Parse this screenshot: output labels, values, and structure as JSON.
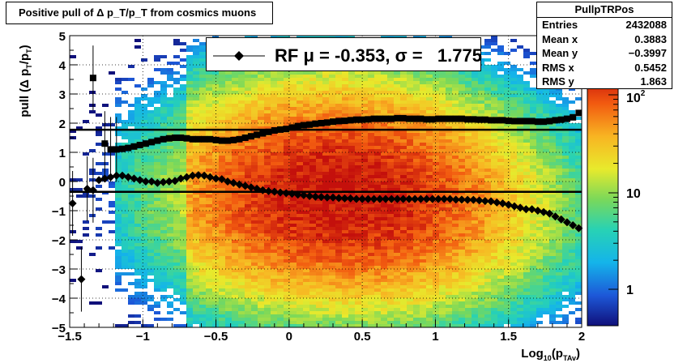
{
  "title": "Positive pull of Δ p_T/p_T from cosmics muons",
  "stats": {
    "name": "PullpTRPos",
    "rows": [
      {
        "label": "Entries",
        "value": "2432088"
      },
      {
        "label": "Mean x",
        "value": "0.3883"
      },
      {
        "label": "Mean y",
        "value": "−0.3997"
      },
      {
        "label": "RMS x",
        "value": "0.5452"
      },
      {
        "label": "RMS y",
        "value": "1.863"
      }
    ]
  },
  "legend": {
    "text": "RF μ = -0.353, σ =   1.775"
  },
  "chart_data": {
    "type": "heatmap",
    "title": "Positive pull of Δ p_T/p_T from cosmics muons",
    "xlabel": "Log10(pTAv)",
    "ylabel": "pull (Δ pT/pT)",
    "xlim": [
      -1.5,
      2
    ],
    "ylim": [
      -5,
      5
    ],
    "x_ticks": [
      "−1.5",
      "−1",
      "−0.5",
      "0",
      "0.5",
      "1",
      "1.5",
      "2"
    ],
    "y_ticks": [
      "−5",
      "−4",
      "−3",
      "−2",
      "−1",
      "0",
      "1",
      "2",
      "3",
      "4",
      "5"
    ],
    "z_scale": "log",
    "z_ticks": [
      "1",
      "10",
      "10^2"
    ],
    "grid": true,
    "reference_lines": [
      {
        "name": "mean",
        "y": -0.353
      },
      {
        "name": "sigma",
        "y": 1.775
      }
    ],
    "series": [
      {
        "name": "mean",
        "marker": "diamond",
        "x": [
          -1.48,
          -1.42,
          -1.38,
          -1.34,
          -1.3,
          -1.26,
          -1.22,
          -1.18,
          -1.14,
          -1.1,
          -1.06,
          -1.02,
          -0.98,
          -0.94,
          -0.9,
          -0.86,
          -0.82,
          -0.78,
          -0.74,
          -0.7,
          -0.66,
          -0.62,
          -0.58,
          -0.54,
          -0.5,
          -0.46,
          -0.42,
          -0.38,
          -0.34,
          -0.3,
          -0.26,
          -0.22,
          -0.18,
          -0.14,
          -0.1,
          -0.06,
          -0.02,
          0.02,
          0.06,
          0.1,
          0.14,
          0.18,
          0.22,
          0.26,
          0.3,
          0.34,
          0.38,
          0.42,
          0.46,
          0.5,
          0.54,
          0.58,
          0.62,
          0.66,
          0.7,
          0.74,
          0.78,
          0.82,
          0.86,
          0.9,
          0.94,
          0.98,
          1.02,
          1.06,
          1.1,
          1.14,
          1.18,
          1.22,
          1.26,
          1.3,
          1.34,
          1.38,
          1.42,
          1.46,
          1.5,
          1.54,
          1.58,
          1.62,
          1.66,
          1.7,
          1.74,
          1.78,
          1.82,
          1.86,
          1.9,
          1.94,
          1.98
        ],
        "y": [
          -0.75,
          -3.35,
          -0.25,
          -0.3,
          0.05,
          0.1,
          0.15,
          0.2,
          0.2,
          0.15,
          0.1,
          0.05,
          0.0,
          0.0,
          -0.05,
          -0.02,
          0.0,
          0.02,
          0.1,
          0.15,
          0.2,
          0.22,
          0.2,
          0.15,
          0.1,
          0.08,
          0.0,
          -0.05,
          -0.1,
          -0.15,
          -0.2,
          -0.25,
          -0.3,
          -0.33,
          -0.35,
          -0.38,
          -0.4,
          -0.42,
          -0.45,
          -0.47,
          -0.5,
          -0.52,
          -0.53,
          -0.55,
          -0.55,
          -0.57,
          -0.58,
          -0.58,
          -0.6,
          -0.6,
          -0.6,
          -0.6,
          -0.6,
          -0.6,
          -0.6,
          -0.6,
          -0.6,
          -0.6,
          -0.6,
          -0.6,
          -0.6,
          -0.6,
          -0.6,
          -0.6,
          -0.6,
          -0.62,
          -0.62,
          -0.63,
          -0.63,
          -0.65,
          -0.67,
          -0.68,
          -0.72,
          -0.75,
          -0.8,
          -0.85,
          -0.9,
          -0.95,
          -0.95,
          -1.0,
          -1.05,
          -1.1,
          -1.2,
          -1.3,
          -1.4,
          -1.5,
          -1.6
        ]
      },
      {
        "name": "sigma",
        "marker": "square",
        "x": [
          -1.34,
          -1.26,
          -1.22,
          -1.18,
          -1.14,
          -1.1,
          -1.06,
          -1.02,
          -0.98,
          -0.94,
          -0.9,
          -0.86,
          -0.82,
          -0.78,
          -0.74,
          -0.7,
          -0.66,
          -0.62,
          -0.58,
          -0.54,
          -0.5,
          -0.46,
          -0.42,
          -0.38,
          -0.34,
          -0.3,
          -0.26,
          -0.22,
          -0.18,
          -0.14,
          -0.1,
          -0.06,
          -0.02,
          0.02,
          0.06,
          0.1,
          0.14,
          0.18,
          0.22,
          0.26,
          0.3,
          0.34,
          0.38,
          0.42,
          0.46,
          0.5,
          0.54,
          0.58,
          0.62,
          0.66,
          0.7,
          0.74,
          0.78,
          0.82,
          0.86,
          0.9,
          0.94,
          0.98,
          1.02,
          1.06,
          1.1,
          1.14,
          1.18,
          1.22,
          1.26,
          1.3,
          1.34,
          1.38,
          1.42,
          1.46,
          1.5,
          1.54,
          1.58,
          1.62,
          1.66,
          1.7,
          1.74,
          1.78,
          1.82,
          1.86,
          1.9,
          1.94,
          1.98
        ],
        "y": [
          3.55,
          1.3,
          1.1,
          1.1,
          1.12,
          1.15,
          1.2,
          1.25,
          1.3,
          1.35,
          1.4,
          1.45,
          1.48,
          1.5,
          1.5,
          1.48,
          1.45,
          1.45,
          1.45,
          1.45,
          1.42,
          1.4,
          1.4,
          1.42,
          1.45,
          1.5,
          1.55,
          1.6,
          1.65,
          1.7,
          1.75,
          1.78,
          1.8,
          1.85,
          1.9,
          1.93,
          1.95,
          1.98,
          2.0,
          2.02,
          2.05,
          2.07,
          2.08,
          2.1,
          2.12,
          2.12,
          2.13,
          2.15,
          2.15,
          2.15,
          2.15,
          2.17,
          2.17,
          2.15,
          2.15,
          2.15,
          2.13,
          2.13,
          2.15,
          2.15,
          2.15,
          2.15,
          2.15,
          2.13,
          2.13,
          2.12,
          2.12,
          2.1,
          2.1,
          2.1,
          2.08,
          2.07,
          2.07,
          2.07,
          2.07,
          2.05,
          2.05,
          2.07,
          2.1,
          2.12,
          2.15,
          2.2,
          2.35
        ]
      }
    ]
  }
}
